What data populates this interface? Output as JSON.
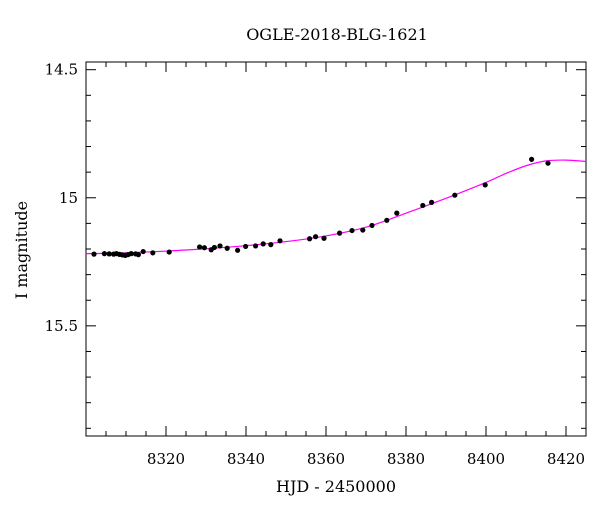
{
  "chart_data": {
    "type": "scatter",
    "title": "OGLE-2018-BLG-1621",
    "xlabel": "HJD - 2450000",
    "ylabel": "I magnitude",
    "xlim": [
      8300,
      8425
    ],
    "ylim": [
      15.93,
      14.47
    ],
    "y_inverted": true,
    "grid": false,
    "x_ticks": [
      8320,
      8340,
      8360,
      8380,
      8400,
      8420
    ],
    "x_tick_labels": [
      "8320",
      "8340",
      "8360",
      "8380",
      "8400",
      "8420"
    ],
    "y_ticks": [
      14.5,
      15,
      15.5
    ],
    "y_tick_labels": [
      "14.5",
      "15",
      "15.5"
    ],
    "point_color": "#000000",
    "model_color": "#ff00ff",
    "series": [
      {
        "values": [
          [
            8302.0,
            15.22
          ],
          [
            8304.6,
            15.218
          ],
          [
            8305.8,
            15.219
          ],
          [
            8306.9,
            15.22
          ],
          [
            8307.6,
            15.218
          ],
          [
            8308.4,
            15.221
          ],
          [
            8309.1,
            15.223
          ],
          [
            8309.8,
            15.225
          ],
          [
            8310.5,
            15.222
          ],
          [
            8311.3,
            15.218
          ],
          [
            8312.4,
            15.219
          ],
          [
            8313.1,
            15.222
          ],
          [
            8314.3,
            15.21
          ],
          [
            8316.7,
            15.215
          ],
          [
            8320.8,
            15.212
          ],
          [
            8328.4,
            15.192
          ],
          [
            8329.6,
            15.195
          ],
          [
            8331.3,
            15.203
          ],
          [
            8332.1,
            15.194
          ],
          [
            8333.5,
            15.188
          ],
          [
            8335.3,
            15.197
          ],
          [
            8337.9,
            15.205
          ],
          [
            8339.9,
            15.19
          ],
          [
            8342.4,
            15.188
          ],
          [
            8344.3,
            15.18
          ],
          [
            8346.2,
            15.183
          ],
          [
            8348.5,
            15.168
          ],
          [
            8355.9,
            15.16
          ],
          [
            8357.4,
            15.152
          ],
          [
            8359.5,
            15.158
          ],
          [
            8363.4,
            15.138
          ],
          [
            8366.5,
            15.128
          ],
          [
            8369.2,
            15.126
          ],
          [
            8371.5,
            15.108
          ],
          [
            8375.2,
            15.088
          ],
          [
            8377.7,
            15.06
          ],
          [
            8384.2,
            15.03
          ],
          [
            8386.4,
            15.018
          ],
          [
            8392.2,
            14.99
          ],
          [
            8399.8,
            14.95
          ],
          [
            8411.4,
            14.85
          ],
          [
            8415.5,
            14.865
          ]
        ]
      }
    ],
    "model": {
      "x": [
        8300,
        8310,
        8320,
        8330,
        8340,
        8350,
        8360,
        8370,
        8380,
        8390,
        8400,
        8405,
        8410,
        8415,
        8420,
        8425
      ],
      "y": [
        15.218,
        15.215,
        15.208,
        15.199,
        15.187,
        15.171,
        15.149,
        15.115,
        15.06,
        15.002,
        14.94,
        14.905,
        14.875,
        14.856,
        14.853,
        14.858
      ]
    }
  }
}
